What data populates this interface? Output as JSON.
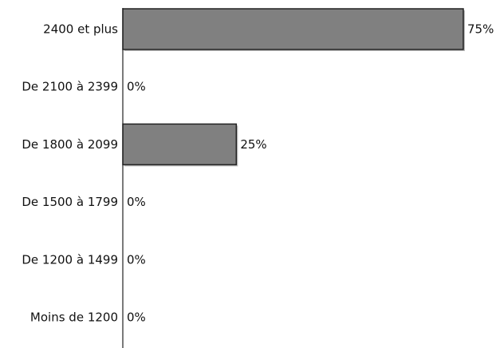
{
  "chart_data": {
    "type": "bar",
    "orientation": "horizontal",
    "categories": [
      "2400 et plus",
      "De 2100 à 2399",
      "De 1800 à 2099",
      "De 1500 à 1799",
      "De 1200 à 1499",
      "Moins de 1200"
    ],
    "values": [
      75,
      0,
      25,
      0,
      0,
      0
    ],
    "value_labels": [
      "75%",
      "0%",
      "25%",
      "0%",
      "0%",
      "0%"
    ],
    "title": "",
    "xlabel": "",
    "ylabel": "",
    "xlim": [
      0,
      75
    ],
    "grid": false,
    "legend": "none",
    "bar_color": "#808080",
    "bar_border_color": "#222222"
  }
}
